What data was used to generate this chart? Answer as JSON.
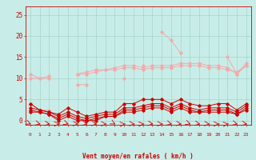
{
  "x": [
    0,
    1,
    2,
    3,
    4,
    5,
    6,
    7,
    8,
    9,
    10,
    11,
    12,
    13,
    14,
    15,
    16,
    17,
    18,
    19,
    20,
    21,
    22,
    23
  ],
  "line1": [
    11,
    10,
    10.5,
    null,
    null,
    11,
    11.5,
    12,
    12,
    12.5,
    13,
    13,
    12.5,
    13,
    13,
    13,
    13.5,
    13.5,
    13.5,
    13,
    13,
    12.5,
    11,
    13.5
  ],
  "line2": [
    10,
    10,
    10,
    null,
    null,
    11,
    11,
    11.5,
    12,
    12,
    12.5,
    12.5,
    12,
    12.5,
    12.5,
    12.5,
    13,
    13,
    13,
    12.5,
    12.5,
    12,
    11.5,
    13
  ],
  "line3": [
    4,
    2.5,
    2.5,
    null,
    null,
    8.5,
    8.5,
    null,
    null,
    null,
    10,
    null,
    13,
    null,
    21,
    19,
    16,
    null,
    null,
    null,
    null,
    15,
    11,
    13
  ],
  "line4": [
    4,
    2.5,
    2,
    1.5,
    3,
    2,
    1,
    1.5,
    2,
    2,
    4,
    4,
    5,
    5,
    5,
    4,
    5,
    4,
    3.5,
    3.5,
    4,
    4,
    2.5,
    4
  ],
  "line5": [
    3,
    2.5,
    2,
    1,
    2,
    1,
    0.5,
    1,
    1.5,
    1.5,
    3,
    3,
    3.5,
    4,
    4,
    3,
    4,
    3,
    2.5,
    3,
    3,
    3,
    2,
    3.5
  ],
  "line6": [
    2.5,
    2,
    1.5,
    0.5,
    1.5,
    0.5,
    0,
    0.5,
    1,
    1,
    2.5,
    2.5,
    3,
    3.5,
    3.5,
    2.5,
    3.5,
    2.5,
    2,
    2.5,
    2.5,
    2.5,
    1.5,
    3
  ],
  "line7": [
    2,
    2,
    1.5,
    0,
    1,
    0,
    0,
    0,
    1,
    1,
    2,
    2,
    2.5,
    3,
    3,
    2,
    3,
    2,
    2,
    2,
    2,
    2,
    1.5,
    2.5
  ],
  "color_light": "#F4AAAA",
  "color_dark": "#CC0000",
  "background": "#C8EDE8",
  "grid_color": "#A8D8D0",
  "xlabel": "Vent moyen/en rafales ( km/h )",
  "ylim": [
    -1,
    27
  ],
  "xlim": [
    -0.5,
    23.5
  ],
  "yticks": [
    0,
    5,
    10,
    15,
    20,
    25
  ],
  "xticks": [
    0,
    1,
    2,
    3,
    4,
    5,
    6,
    7,
    8,
    9,
    10,
    11,
    12,
    13,
    14,
    15,
    16,
    17,
    18,
    19,
    20,
    21,
    22,
    23
  ],
  "arrow_angles": [
    135,
    120,
    110,
    90,
    130,
    100,
    115,
    105,
    95,
    140,
    80,
    100,
    85,
    110,
    95,
    120,
    105,
    130,
    115,
    100,
    90,
    80,
    120,
    110
  ]
}
